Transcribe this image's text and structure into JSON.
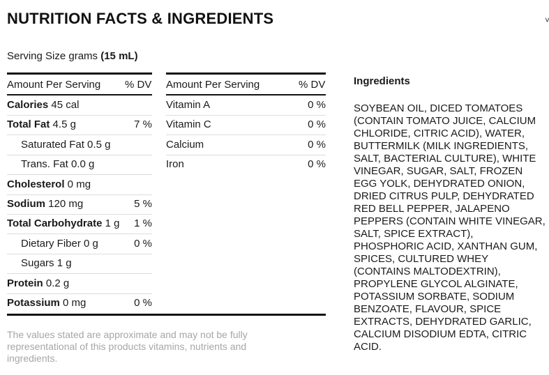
{
  "title": "NUTRITION FACTS & INGREDIENTS",
  "corner_mark": "˅",
  "serving": {
    "label": "Serving Size grams ",
    "value": "(15 mL)"
  },
  "left_table": {
    "header_amount": "Amount Per Serving",
    "header_dv": "% DV",
    "rows": [
      {
        "name": "Calories",
        "amount": " 45 cal",
        "dv": "",
        "bold": true
      },
      {
        "name": "Total Fat",
        "amount": " 4.5 g",
        "dv": "7 %",
        "bold": true
      },
      {
        "name": "Saturated Fat",
        "amount": " 0.5 g",
        "dv": "",
        "bold": false
      },
      {
        "name": "Trans. Fat",
        "amount": " 0.0 g",
        "dv": "",
        "bold": false
      },
      {
        "name": "Cholesterol",
        "amount": " 0 mg",
        "dv": "",
        "bold": true
      },
      {
        "name": "Sodium",
        "amount": " 120 mg",
        "dv": "5 %",
        "bold": true
      },
      {
        "name": "Total Carbohydrate",
        "amount": " 1 g",
        "dv": "1 %",
        "bold": true
      },
      {
        "name": "Dietary Fiber",
        "amount": " 0 g",
        "dv": "0 %",
        "bold": false
      },
      {
        "name": "Sugars",
        "amount": " 1 g",
        "dv": "",
        "bold": false
      },
      {
        "name": "Protein",
        "amount": " 0.2 g",
        "dv": "",
        "bold": true
      },
      {
        "name": "Potassium",
        "amount": " 0 mg",
        "dv": "0 %",
        "bold": true
      }
    ]
  },
  "right_table": {
    "header_amount": "Amount Per Serving",
    "header_dv": "% DV",
    "rows": [
      {
        "name": "Vitamin A",
        "dv": "0 %"
      },
      {
        "name": "Vitamin C",
        "dv": "0 %"
      },
      {
        "name": "Calcium",
        "dv": "0 %"
      },
      {
        "name": "Iron",
        "dv": "0 %"
      }
    ]
  },
  "footnote": "The values stated are approximate and may not be fully representational of this products vitamins, nutrients and ingredients.",
  "ingredients": {
    "title": "Ingredients",
    "text": "SOYBEAN OIL, DICED TOMATOES (CONTAIN TOMATO JUICE, CALCIUM CHLORIDE, CITRIC ACID), WATER, BUTTERMILK (MILK INGREDIENTS, SALT, BACTERIAL CULTURE), WHITE VINEGAR, SUGAR, SALT, FROZEN EGG YOLK, DEHYDRATED ONION, DRIED CITRUS PULP, DEHYDRATED RED BELL PEPPER, JALAPENO PEPPERS (CONTAIN WHITE VINEGAR, SALT, SPICE EXTRACT), PHOSPHORIC ACID, XANTHAN GUM, SPICES, CULTURED WHEY (CONTAINS MALTODEXTRIN), PROPYLENE GLYCOL ALGINATE, POTASSIUM SORBATE, SODIUM BENZOATE, FLAVOUR, SPICE EXTRACTS, DEHYDRATED GARLIC, CALCIUM DISODIUM EDTA, CITRIC ACID."
  }
}
